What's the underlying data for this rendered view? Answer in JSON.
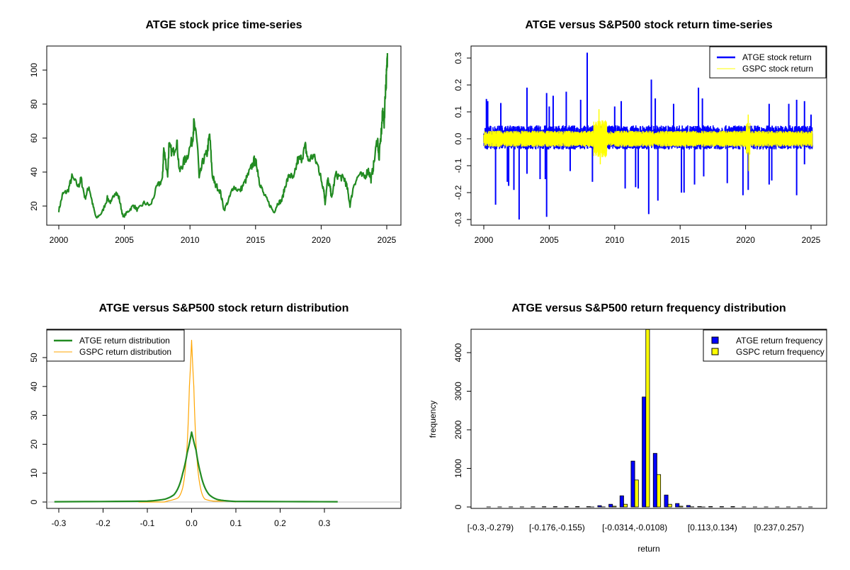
{
  "chart_data": [
    {
      "type": "line",
      "title": "ATGE stock price time-series",
      "xlabel": "",
      "ylabel": "",
      "xlim": [
        2000,
        2025.3
      ],
      "ylim": [
        10,
        114
      ],
      "x_ticks": [
        "2000",
        "2005",
        "2010",
        "2015",
        "2020",
        "2025"
      ],
      "y_ticks": [
        "20",
        "40",
        "60",
        "80",
        "100"
      ],
      "colors": {
        "line": "#228B22"
      },
      "series": [
        {
          "x": [
            2000.0,
            2000.3,
            2000.7,
            2001.0,
            2001.5,
            2001.7,
            2002.0,
            2002.3,
            2002.6,
            2002.85,
            2003.3,
            2003.7,
            2004.0,
            2004.3,
            2004.6,
            2004.9,
            2005.3,
            2005.7,
            2006.0,
            2006.5,
            2007.0,
            2007.5,
            2007.9,
            2008.0,
            2008.3,
            2008.4,
            2008.7,
            2009.0,
            2009.2,
            2009.5,
            2009.8,
            2010.2,
            2010.3,
            2010.6,
            2010.7,
            2011.0,
            2011.3,
            2011.5,
            2011.7,
            2011.9,
            2012.3,
            2012.6,
            2013.0,
            2013.3,
            2013.8,
            2014.2,
            2014.6,
            2014.9,
            2015.1,
            2015.3,
            2015.6,
            2016.0,
            2016.4,
            2016.7,
            2017.0,
            2017.3,
            2017.6,
            2017.9,
            2018.2,
            2018.5,
            2018.8,
            2019.0,
            2019.4,
            2019.8,
            2020.0,
            2020.2,
            2020.3,
            2020.5,
            2020.7,
            2020.8,
            2021.1,
            2021.5,
            2021.8,
            2022.0,
            2022.2,
            2022.5,
            2022.9,
            2023.3,
            2023.6,
            2023.8,
            2024.0,
            2024.3,
            2024.4,
            2024.6,
            2024.7,
            2024.8,
            2024.9,
            2025.0,
            2025.05
          ],
          "y": [
            17.4,
            27,
            29,
            37,
            31.5,
            36,
            24.6,
            31.5,
            20.4,
            12.8,
            16.2,
            24.6,
            21.8,
            28.8,
            24.6,
            13.5,
            17,
            20.4,
            17.6,
            21.8,
            20.4,
            31.5,
            35.7,
            53.8,
            38.5,
            55,
            51,
            58,
            40,
            45.5,
            49.6,
            59.4,
            69,
            53.8,
            35.7,
            46.8,
            51,
            62,
            38.5,
            33,
            28.8,
            17.6,
            24.6,
            31.5,
            28.8,
            34.3,
            41.3,
            46.8,
            44,
            34.3,
            27.4,
            21.8,
            16.2,
            21.8,
            23.2,
            33,
            38.5,
            35.7,
            46.8,
            48.2,
            55,
            46.8,
            49.6,
            42.7,
            35.7,
            30,
            21.8,
            35.7,
            30,
            24.6,
            38.5,
            37,
            35.7,
            30,
            20.4,
            33,
            38.5,
            37,
            41.3,
            35.7,
            44,
            60.7,
            46.8,
            65,
            76,
            69,
            88.6,
            98.3,
            110
          ]
        }
      ]
    },
    {
      "type": "line",
      "title": "ATGE versus S&P500 stock return time-series",
      "xlabel": "",
      "ylabel": "",
      "xlim": [
        2000,
        2025.3
      ],
      "ylim": [
        -0.31,
        0.33
      ],
      "x_ticks": [
        "2000",
        "2005",
        "2010",
        "2015",
        "2020",
        "2025"
      ],
      "y_ticks": [
        "-0.3",
        "-0.2",
        "-0.1",
        "0.0",
        "0.1",
        "0.2",
        "0.3"
      ],
      "legend": {
        "position": "top-right",
        "entries": [
          "ATGE stock return",
          "GSPC stock return"
        ]
      },
      "colors": {
        "ATGE": "#0000FF",
        "GSPC": "#FFFF00"
      },
      "series": [
        {
          "name": "ATGE stock return",
          "typical_range": [
            -0.04,
            0.05
          ],
          "spikes_x": [
            2000.2,
            2000.3,
            2001.3,
            2003.3,
            2004.8,
            2005.0,
            2005.3,
            2006.3,
            2007.4,
            2007.9,
            2010.0,
            2010.5,
            2012.8,
            2013.1,
            2014.5,
            2016.4,
            2016.7,
            2021.8,
            2023.3,
            2023.9,
            2024.5,
            2025.0,
            2000.9,
            2001.8,
            2001.9,
            2002.3,
            2002.7,
            2003.3,
            2004.3,
            2004.7,
            2004.8,
            2006.6,
            2008.3,
            2010.8,
            2011.6,
            2011.8,
            2012.6,
            2013.3,
            2015.1,
            2015.3,
            2016.1,
            2016.8,
            2018.6,
            2019.8,
            2020.2,
            2021.8,
            2022.0,
            2023.9,
            2024.5
          ],
          "spikes_y": [
            0.148,
            0.14,
            0.133,
            0.19,
            0.17,
            0.12,
            0.16,
            0.175,
            0.145,
            0.32,
            0.12,
            0.14,
            0.22,
            0.15,
            0.13,
            0.19,
            0.15,
            0.13,
            0.13,
            0.145,
            0.14,
            0.09,
            -0.245,
            -0.16,
            -0.175,
            -0.19,
            -0.3,
            -0.13,
            -0.15,
            -0.15,
            -0.29,
            -0.12,
            -0.16,
            -0.185,
            -0.18,
            -0.185,
            -0.28,
            -0.23,
            -0.2,
            -0.2,
            -0.17,
            -0.14,
            -0.165,
            -0.21,
            -0.19,
            -0.17,
            -0.155,
            -0.21,
            -0.095
          ]
        },
        {
          "name": "GSPC stock return",
          "typical_range": [
            -0.03,
            0.03
          ],
          "spikes_x": [
            2008.8,
            2008.9,
            2020.2,
            2020.25
          ],
          "spikes_y": [
            0.11,
            -0.095,
            0.09,
            -0.12
          ]
        }
      ]
    },
    {
      "type": "line",
      "title": "ATGE versus S&P500 stock return distribution",
      "xlabel": "",
      "ylabel": "",
      "xlim": [
        -0.323,
        0.343
      ],
      "ylim": [
        -2,
        60
      ],
      "x_ticks": [
        "-0.3",
        "-0.2",
        "-0.1",
        "0.0",
        "0.1",
        "0.2",
        "0.3"
      ],
      "y_ticks": [
        "0",
        "10",
        "20",
        "30",
        "40",
        "50"
      ],
      "legend": {
        "position": "top-left",
        "entries": [
          "ATGE return distribution",
          "GSPC return distribution"
        ]
      },
      "colors": {
        "ATGE": "#228B22",
        "GSPC": "#FFA500",
        "baseline": "#BEBEBE"
      },
      "series": [
        {
          "name": "ATGE return distribution",
          "x": [
            -0.31,
            -0.1,
            -0.06,
            -0.04,
            -0.03,
            -0.02,
            -0.01,
            0,
            0.01,
            0.02,
            0.03,
            0.04,
            0.06,
            0.1,
            0.33
          ],
          "y": [
            0.1,
            0.3,
            1,
            2.5,
            5,
            10,
            17,
            24.2,
            18,
            10,
            5,
            2.5,
            0.8,
            0.2,
            0.1
          ]
        },
        {
          "name": "GSPC return distribution",
          "x": [
            -0.12,
            -0.05,
            -0.03,
            -0.02,
            -0.01,
            -0.005,
            0,
            0.005,
            0.01,
            0.02,
            0.03,
            0.05,
            0.1
          ],
          "y": [
            0,
            0.5,
            1.5,
            5,
            20,
            40,
            56,
            40,
            20,
            5,
            1,
            0.3,
            0
          ]
        }
      ]
    },
    {
      "type": "bar",
      "title": "ATGE versus S&P500 return frequency distribution",
      "xlabel": "return",
      "ylabel": "frequency",
      "ylim": [
        0,
        4600
      ],
      "y_ticks": [
        "0",
        "1000",
        "2000",
        "3000",
        "4000"
      ],
      "x_tick_labels": [
        {
          "bin": 1,
          "label": "[-0.3,-0.279)"
        },
        {
          "bin": 7,
          "label": "[-0.176,-0.155)"
        },
        {
          "bin": 14,
          "label": "[-0.0314,-0.0108)"
        },
        {
          "bin": 21,
          "label": "[0.113,0.134)"
        },
        {
          "bin": 27,
          "label": "[0.237,0.257)"
        }
      ],
      "legend": {
        "position": "top-right",
        "entries": [
          "ATGE return frequency",
          "GSPC return frequency"
        ]
      },
      "colors": {
        "ATGE": "#0000FF",
        "GSPC": "#FFFF00"
      },
      "series": [
        {
          "name": "ATGE return frequency",
          "values": [
            2,
            2,
            3,
            3,
            5,
            8,
            10,
            10,
            12,
            10,
            35,
            70,
            290,
            1190,
            2850,
            1390,
            310,
            90,
            40,
            12,
            12,
            10,
            12,
            3,
            2,
            2,
            2,
            2,
            2,
            2
          ]
        },
        {
          "name": "GSPC return frequency",
          "values": [
            0,
            0,
            0,
            0,
            0,
            0,
            0,
            0,
            0,
            1,
            3,
            20,
            70,
            700,
            4600,
            840,
            70,
            20,
            5,
            1,
            0,
            0,
            0,
            0,
            0,
            0,
            0,
            0,
            0,
            0
          ]
        }
      ]
    }
  ]
}
